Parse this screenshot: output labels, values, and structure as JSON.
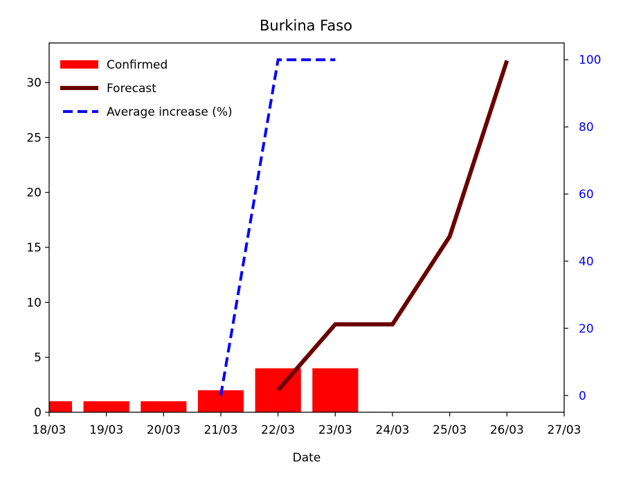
{
  "chart_data": {
    "type": "bar",
    "title": "Burkina Faso",
    "xlabel": "Date",
    "ylabel": "",
    "y2label": "",
    "x_ticks": [
      "18/03",
      "19/03",
      "20/03",
      "21/03",
      "22/03",
      "23/03",
      "24/03",
      "25/03",
      "26/03",
      "27/03"
    ],
    "ylim": [
      0,
      33.6
    ],
    "y_ticks": [
      0,
      5,
      10,
      15,
      20,
      25,
      30
    ],
    "y2lim": [
      -5,
      105
    ],
    "y2_ticks": [
      0,
      20,
      40,
      60,
      80,
      100
    ],
    "legend_position": "top-left",
    "grid": false,
    "series": [
      {
        "name": "Confirmed",
        "kind": "bar",
        "axis": "left",
        "color": "#ff0000",
        "x": [
          "18/03",
          "19/03",
          "20/03",
          "21/03",
          "22/03",
          "23/03"
        ],
        "values": [
          1,
          1,
          1,
          2,
          4,
          4
        ]
      },
      {
        "name": "Forecast",
        "kind": "line",
        "axis": "left",
        "color": "#6b0000",
        "x": [
          "22/03",
          "23/03",
          "24/03",
          "25/03",
          "26/03"
        ],
        "values": [
          2,
          8,
          8,
          16,
          32
        ]
      },
      {
        "name": "Average increase (%)",
        "kind": "dashed-line",
        "axis": "right",
        "color": "#0000ff",
        "x": [
          "21/03",
          "22/03",
          "23/03"
        ],
        "values": [
          0,
          100,
          100
        ]
      }
    ]
  }
}
